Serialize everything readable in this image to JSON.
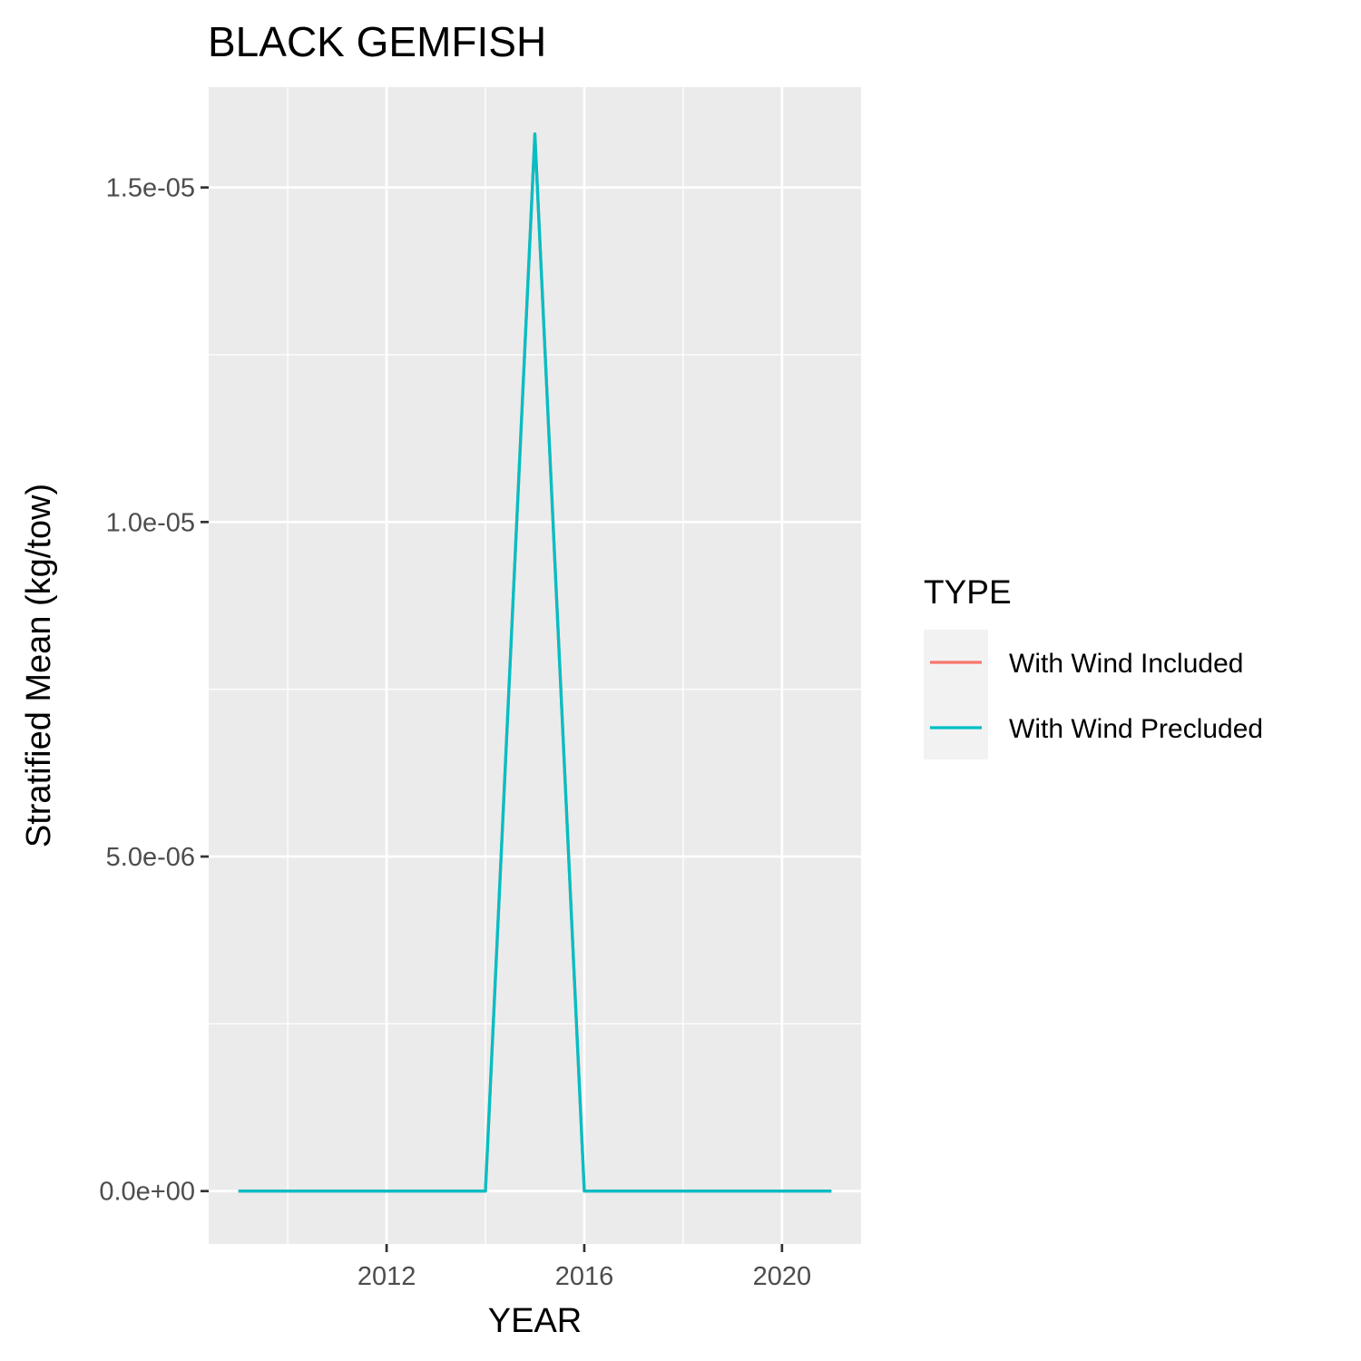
{
  "chart_data": {
    "type": "line",
    "title": "BLACK GEMFISH",
    "xlabel": "YEAR",
    "ylabel": "Stratified Mean (kg/tow)",
    "x": [
      2009,
      2010,
      2011,
      2012,
      2013,
      2014,
      2015,
      2016,
      2017,
      2018,
      2019,
      2020,
      2021
    ],
    "series": [
      {
        "name": "With Wind Included",
        "color": "#F8766D",
        "values": [
          0,
          0,
          0,
          0,
          0,
          0,
          1.58e-05,
          0,
          0,
          0,
          0,
          0,
          0
        ]
      },
      {
        "name": "With Wind Precluded",
        "color": "#00BFC4",
        "values": [
          0,
          0,
          0,
          0,
          0,
          0,
          1.58e-05,
          0,
          0,
          0,
          0,
          0,
          0
        ]
      }
    ],
    "xlim": [
      2008.4,
      2021.6
    ],
    "ylim": [
      -7.9e-07,
      1.65e-05
    ],
    "x_ticks": [
      2012,
      2016,
      2020
    ],
    "x_tick_labels": [
      "2012",
      "2016",
      "2020"
    ],
    "x_minor_ticks": [
      2010,
      2014,
      2018
    ],
    "y_ticks": [
      0,
      5e-06,
      1e-05,
      1.5e-05
    ],
    "y_tick_labels": [
      "0.0e+00",
      "5.0e-06",
      "1.0e-05",
      "1.5e-05"
    ],
    "y_minor_ticks": [
      2.5e-06,
      7.5e-06,
      1.25e-05
    ],
    "grid": true,
    "legend": {
      "title": "TYPE",
      "position": "right"
    }
  }
}
